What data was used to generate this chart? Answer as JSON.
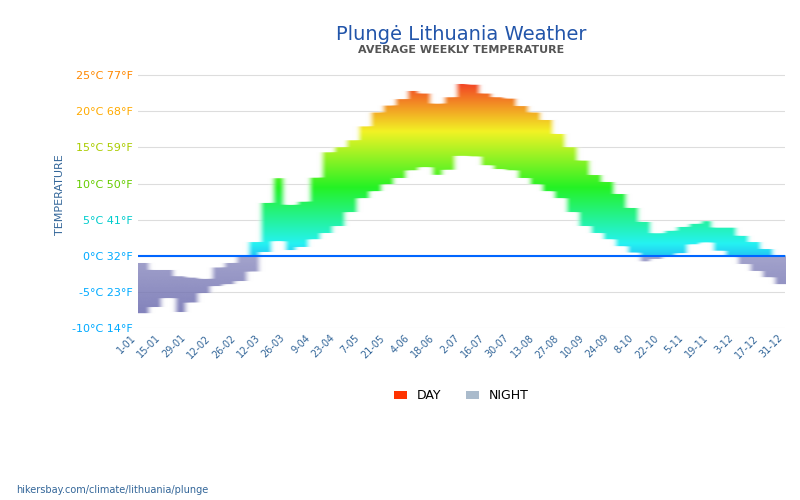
{
  "title": "Plungė Lithuania Weather",
  "subtitle": "AVERAGE WEEKLY TEMPERATURE",
  "xlabel": "",
  "ylabel": "TEMPERATURE",
  "yticks": [
    -10,
    -5,
    0,
    5,
    10,
    15,
    20,
    25
  ],
  "ytick_labels": [
    "-10°C 14°F",
    "-5°C 23°F",
    "0°C 32°F",
    "5°C 41°F",
    "10°C 50°F",
    "15°C 59°F",
    "20°C 68°F",
    "25°C 77°F"
  ],
  "ytick_colors": [
    "#00aaff",
    "#00aaff",
    "#00aaff",
    "#00cccc",
    "#66cc00",
    "#aacc00",
    "#ffaa00",
    "#ff8800"
  ],
  "xtick_labels": [
    "1-01",
    "15-01",
    "29-01",
    "12-02",
    "26-02",
    "12-03",
    "26-03",
    "9-04",
    "23-04",
    "7-05",
    "21-05",
    "4-06",
    "18-06",
    "2-07",
    "16-07",
    "30-07",
    "13-08",
    "27-08",
    "10-09",
    "24-09",
    "8-10",
    "22-10",
    "5-11",
    "19-11",
    "3-12",
    "17-12",
    "31-12"
  ],
  "footer": "hikersbay.com/climate/lithuania/plunge",
  "day_color": "#ff3300",
  "night_color": "#aabbcc",
  "zero_line_color": "#0066ff",
  "background_color": "#ffffff",
  "grid_color": "#dddddd"
}
